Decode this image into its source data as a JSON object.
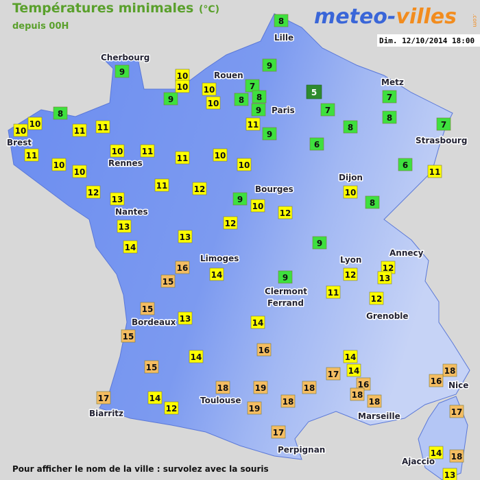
{
  "header": {
    "title": "Températures minimales",
    "unit": "(°C)",
    "subtitle": "depuis 00H",
    "logo_part1": "meteo-",
    "logo_part2": "villes",
    "logo_suffix": ".com",
    "datetime": "Dim. 12/10/2014 18:00"
  },
  "cities": [
    "Cherbourg",
    "Lille",
    "Rouen",
    "Metz",
    "Paris",
    "Brest",
    "Strasbourg",
    "Rennes",
    "Dijon",
    "Bourges",
    "Nantes",
    "Limoges",
    "Lyon",
    "Annecy",
    "Clermont Ferrand",
    "Grenoble",
    "Bordeaux",
    "Nice",
    "Toulouse",
    "Biarritz",
    "Marseille",
    "Perpignan",
    "Ajaccio"
  ],
  "temperatures": [
    8,
    9,
    9,
    10,
    10,
    10,
    9,
    7,
    8,
    8,
    10,
    9,
    5,
    7,
    7,
    11,
    8,
    8,
    10,
    10,
    11,
    11,
    9,
    8,
    7,
    11,
    10,
    11,
    11,
    10,
    6,
    10,
    10,
    10,
    6,
    11,
    11,
    12,
    12,
    13,
    10,
    9,
    10,
    8,
    12,
    12,
    13,
    13,
    9,
    14,
    16,
    12,
    15,
    14,
    9,
    12,
    13,
    11,
    12,
    15,
    13,
    14,
    15,
    16,
    14,
    14,
    15,
    17,
    14,
    18,
    16,
    16,
    18,
    19,
    18,
    18,
    17,
    14,
    18,
    18,
    12,
    19,
    17,
    17,
    14,
    18,
    13
  ],
  "footer": "Pour afficher le nom de la ville : survolez avec la souris"
}
